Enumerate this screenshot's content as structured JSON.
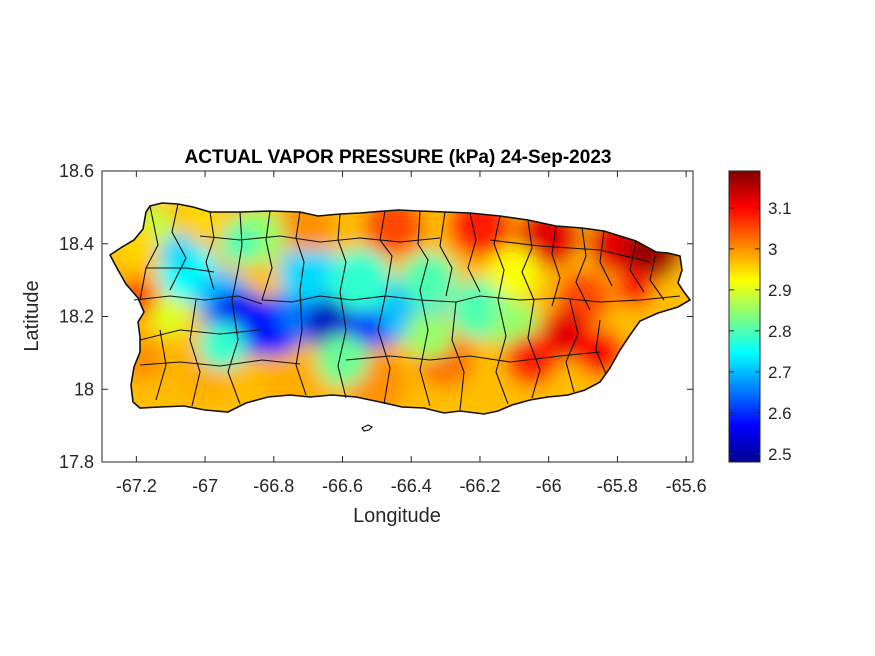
{
  "title": "ACTUAL VAPOR PRESSURE (kPa) 24-Sep-2023",
  "xlabel": "Longitude",
  "ylabel": "Latitude",
  "chart_data": {
    "type": "heatmap",
    "title": "ACTUAL VAPOR PRESSURE (kPa) 24-Sep-2023",
    "xlabel": "Longitude",
    "ylabel": "Latitude",
    "xlim": [
      -67.3,
      -65.58
    ],
    "ylim": [
      17.8,
      18.6
    ],
    "x_ticks": [
      -67.2,
      -67,
      -66.8,
      -66.6,
      -66.4,
      -66.2,
      -66,
      -65.8,
      -65.6
    ],
    "x_tick_labels": [
      "-67.2",
      "-67",
      "-66.8",
      "-66.6",
      "-66.4",
      "-66.2",
      "-66",
      "-65.8",
      "-65.6"
    ],
    "y_ticks": [
      17.8,
      18,
      18.2,
      18.4,
      18.6
    ],
    "y_tick_labels": [
      "17.8",
      "18",
      "18.2",
      "18.4",
      "18.6"
    ],
    "colorbar": {
      "colormap": "jet",
      "range": [
        2.48,
        3.19
      ],
      "ticks": [
        2.5,
        2.6,
        2.7,
        2.8,
        2.9,
        3.0,
        3.1
      ],
      "tick_labels": [
        "2.5",
        "2.6",
        "2.7",
        "2.8",
        "2.9",
        "3",
        "3.1"
      ]
    },
    "region": "Puerto Rico municipalities",
    "field_summary": {
      "min_region": "central mountain range (~ -66.6, 18.17)",
      "max_region": "northeast coast (~ -65.7, 18.37)"
    },
    "grid": false
  }
}
